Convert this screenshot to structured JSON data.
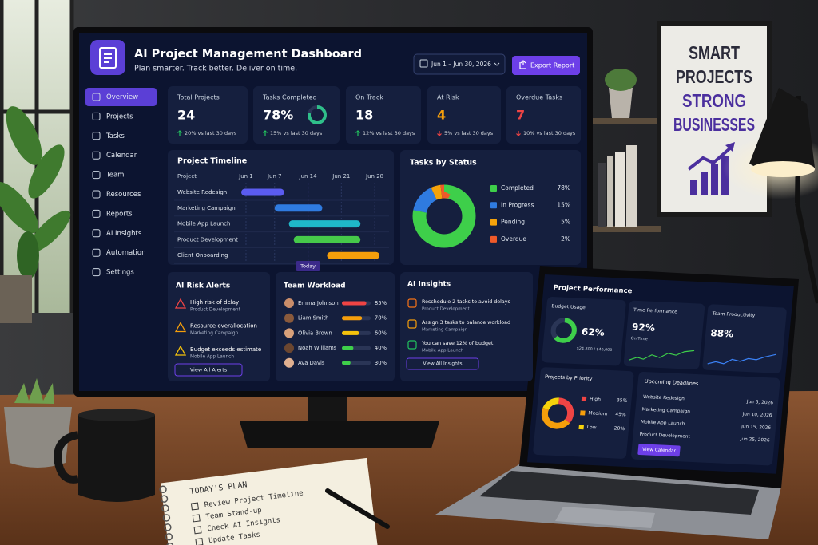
{
  "dashboard": {
    "title": "AI Project Management Dashboard",
    "subtitle": "Plan smarter. Track better. Deliver on time.",
    "date_range": "Jun 1 – Jun 30, 2026",
    "export_button": "Export Report",
    "nav": [
      "Overview",
      "Projects",
      "Tasks",
      "Calendar",
      "Team",
      "Resources",
      "Reports",
      "AI Insights",
      "Automation",
      "Settings"
    ],
    "stats": [
      {
        "label": "Total Projects",
        "value": 24,
        "change": "20% vs last 30 days",
        "trend": "up",
        "color": "#ffffff"
      },
      {
        "label": "Tasks Completed",
        "value": 78,
        "value_label": "78%",
        "change": "15% vs last 30 days",
        "trend": "up",
        "color": "#ffffff"
      },
      {
        "label": "On Track",
        "value": 18,
        "change": "12% vs last 30 days",
        "trend": "up",
        "color": "#ffffff"
      },
      {
        "label": "At Risk",
        "value": 4,
        "change": "5% vs last 30 days",
        "trend": "down",
        "color": "#f59e0b"
      },
      {
        "label": "Overdue Tasks",
        "value": 7,
        "change": "10% vs last 30 days",
        "trend": "down",
        "color": "#ef4444"
      }
    ],
    "timeline": {
      "title": "Project Timeline",
      "column_header": "Project",
      "xlim": [
        0,
        31
      ],
      "xticks": [
        {
          "value": 1,
          "label": "Jun 1"
        },
        {
          "value": 7,
          "label": "Jun 7"
        },
        {
          "value": 14,
          "label": "Jun 14"
        },
        {
          "value": 21,
          "label": "Jun 21"
        },
        {
          "value": 28,
          "label": "Jun 28"
        }
      ],
      "today": {
        "value": 14,
        "label": "Today"
      },
      "tasks": [
        {
          "name": "Website Redesign",
          "start": 0,
          "end": 9,
          "color": "#5b5cf0"
        },
        {
          "name": "Marketing Campaign",
          "start": 7,
          "end": 17,
          "color": "#2f7be0"
        },
        {
          "name": "Mobile App Launch",
          "start": 10,
          "end": 25,
          "color": "#1fb8c9"
        },
        {
          "name": "Product Development",
          "start": 11,
          "end": 25,
          "color": "#46c94a"
        },
        {
          "name": "Client Onboarding",
          "start": 18,
          "end": 29,
          "color": "#f59e0b"
        }
      ]
    },
    "status": {
      "title": "Tasks by Status",
      "items": [
        {
          "name": "Completed",
          "value": 78,
          "label": "78%",
          "color": "#3ecf4a"
        },
        {
          "name": "In Progress",
          "value": 15,
          "label": "15%",
          "color": "#2f7be0"
        },
        {
          "name": "Pending",
          "value": 5,
          "label": "5%",
          "color": "#f5a30b"
        },
        {
          "name": "Overdue",
          "value": 2,
          "label": "2%",
          "color": "#ef5a2a"
        }
      ]
    },
    "risk_alerts": {
      "title": "AI Risk Alerts",
      "items": [
        {
          "title": "High risk of delay",
          "project": "Product Development"
        },
        {
          "title": "Resource overallocation",
          "project": "Marketing Campaign"
        },
        {
          "title": "Budget exceeds estimate",
          "project": "Mobile App Launch"
        }
      ],
      "button": "View All Alerts"
    },
    "workload": {
      "title": "Team Workload",
      "members": [
        {
          "name": "Emma Johnson",
          "value": 85,
          "label": "85%",
          "color": "#ef4444"
        },
        {
          "name": "Liam Smith",
          "value": 70,
          "label": "70%",
          "color": "#f59e0b"
        },
        {
          "name": "Olivia Brown",
          "value": 60,
          "label": "60%",
          "color": "#f5c20b"
        },
        {
          "name": "Noah Williams",
          "value": 40,
          "label": "40%",
          "color": "#3ecf4a"
        },
        {
          "name": "Ava Davis",
          "value": 30,
          "label": "30%",
          "color": "#3ecf4a"
        }
      ]
    },
    "insights": {
      "title": "AI Insights",
      "items": [
        {
          "text": "Reschedule 2 tasks to avoid delays",
          "project": "Product Development"
        },
        {
          "text": "Assign 3 tasks to balance workload",
          "project": "Marketing Campaign"
        },
        {
          "text": "You can save 12% of budget",
          "project": "Mobile App Launch"
        }
      ],
      "button": "View All Insights"
    }
  },
  "laptop": {
    "title": "Project Performance",
    "budget": {
      "label": "Budget Usage",
      "value": 62,
      "value_label": "62%",
      "detail": "$24,800 / $40,000"
    },
    "time": {
      "label": "Time Performance",
      "value_label": "92%",
      "caption": "On Time"
    },
    "productivity": {
      "label": "Team Productivity",
      "value_label": "88%"
    },
    "priority": {
      "title": "Projects by Priority",
      "items": [
        {
          "name": "High",
          "value": 35,
          "label": "35%",
          "color": "#ef4444"
        },
        {
          "name": "Medium",
          "value": 45,
          "label": "45%",
          "color": "#f59e0b"
        },
        {
          "name": "Low",
          "value": 20,
          "label": "20%",
          "color": "#f5d20b"
        }
      ]
    },
    "deadlines": {
      "title": "Upcoming Deadlines",
      "rows": [
        {
          "project": "Website Redesign",
          "date": "Jun 5, 2026"
        },
        {
          "project": "Marketing Campaign",
          "date": "Jun 10, 2026"
        },
        {
          "project": "Mobile App Launch",
          "date": "Jun 15, 2026"
        },
        {
          "project": "Product Development",
          "date": "Jun 25, 2026"
        }
      ],
      "button": "View Calendar"
    }
  },
  "poster": {
    "lines": [
      "SMART",
      "PROJECTS",
      "STRONG",
      "BUSINESSES"
    ]
  },
  "notebook": {
    "title": "TODAY'S PLAN",
    "items": [
      "Review Project Timeline",
      "Team Stand-up",
      "Check AI Insights",
      "Update Tasks"
    ]
  }
}
